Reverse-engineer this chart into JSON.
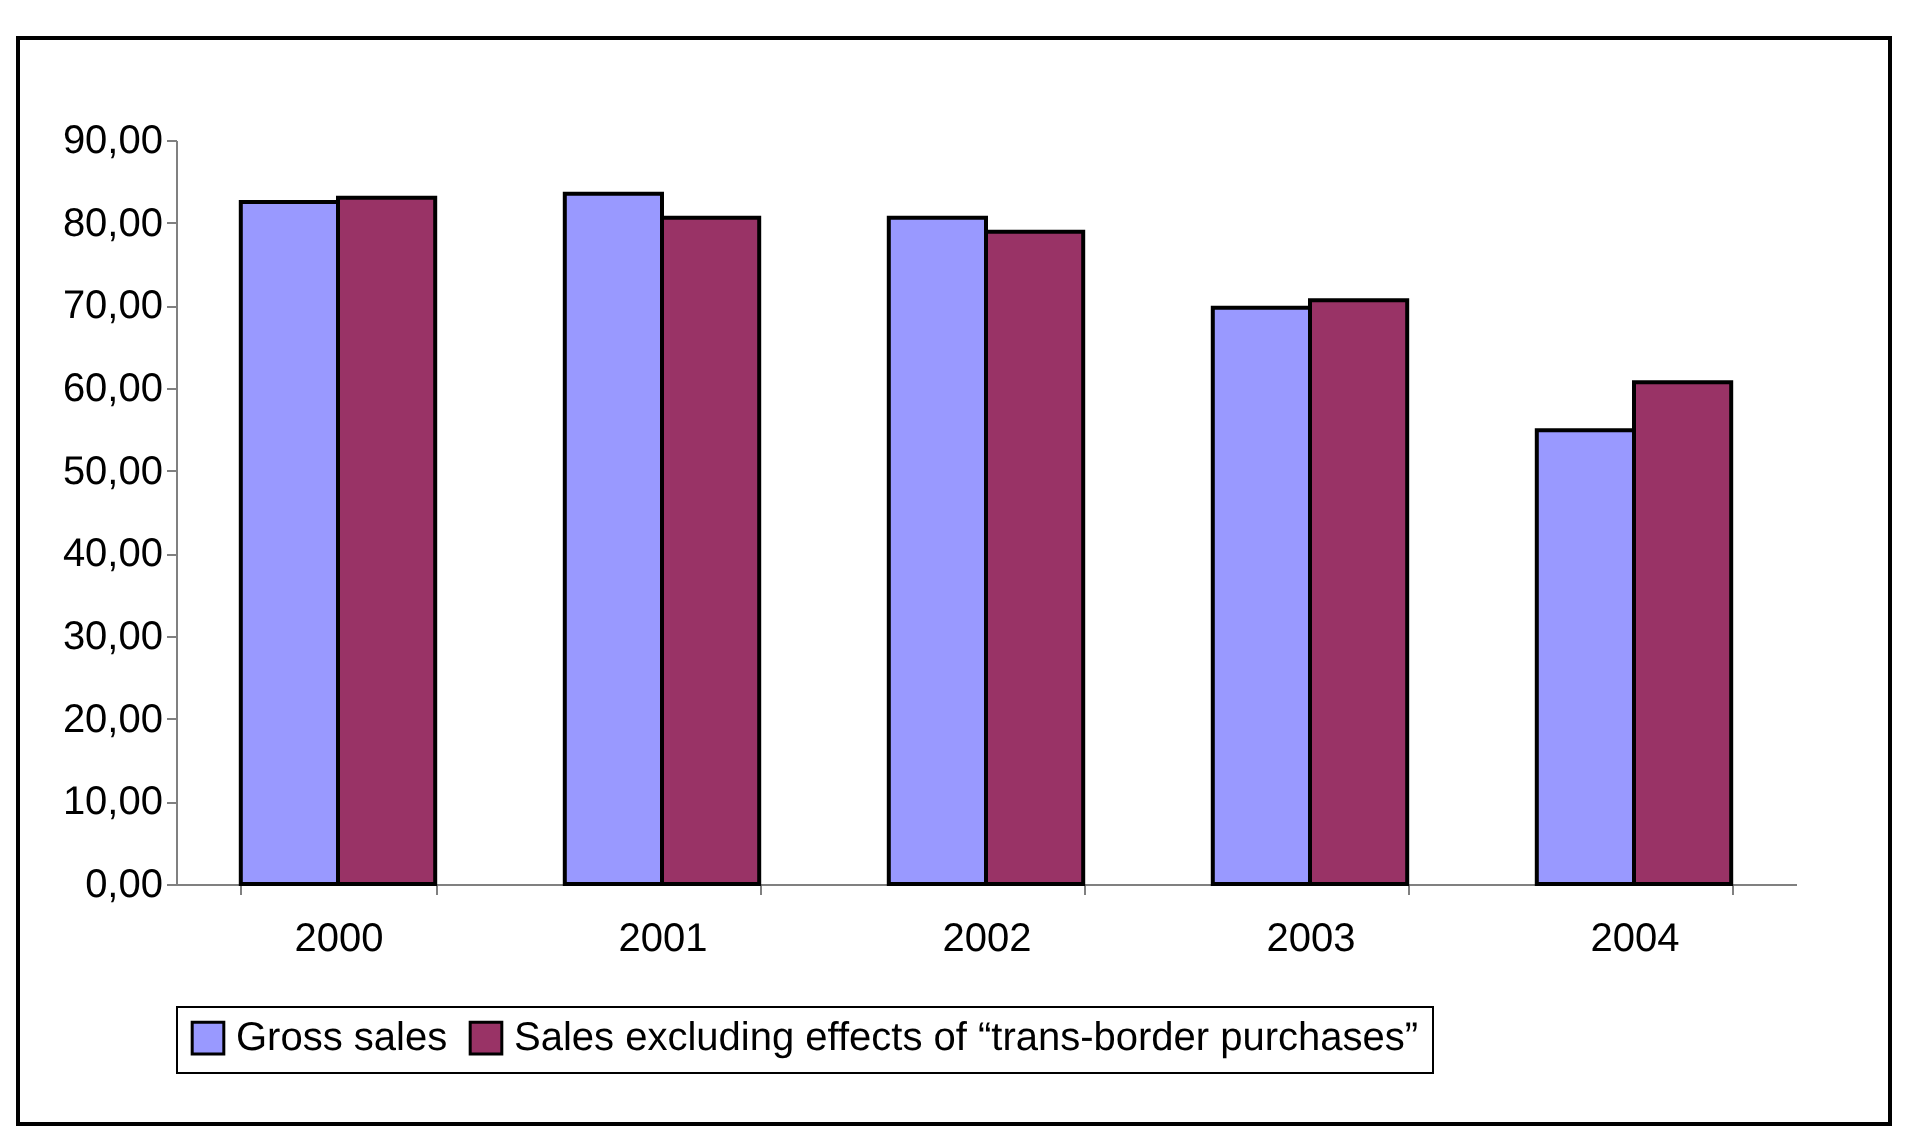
{
  "chart_data": {
    "type": "bar",
    "categories": [
      "2000",
      "2001",
      "2002",
      "2003",
      "2004"
    ],
    "series": [
      {
        "name": "Gross sales",
        "color": "#9999ff",
        "values": [
          82.5,
          83.5,
          80.6,
          69.7,
          54.9
        ]
      },
      {
        "name": "Sales excluding effects of “trans-border purchases”",
        "color": "#993366",
        "values": [
          83.0,
          80.6,
          78.9,
          70.6,
          60.7
        ]
      }
    ],
    "ylim": [
      0,
      90
    ],
    "yticks": [
      {
        "value": 0,
        "label": "0,00"
      },
      {
        "value": 10,
        "label": "10,00"
      },
      {
        "value": 20,
        "label": "20,00"
      },
      {
        "value": 30,
        "label": "30,00"
      },
      {
        "value": 40,
        "label": "40,00"
      },
      {
        "value": 50,
        "label": "50,00"
      },
      {
        "value": 60,
        "label": "60,00"
      },
      {
        "value": 70,
        "label": "70,00"
      },
      {
        "value": 80,
        "label": "80,00"
      },
      {
        "value": 90,
        "label": "90,00"
      }
    ],
    "grid": false,
    "legend": "bottom"
  }
}
